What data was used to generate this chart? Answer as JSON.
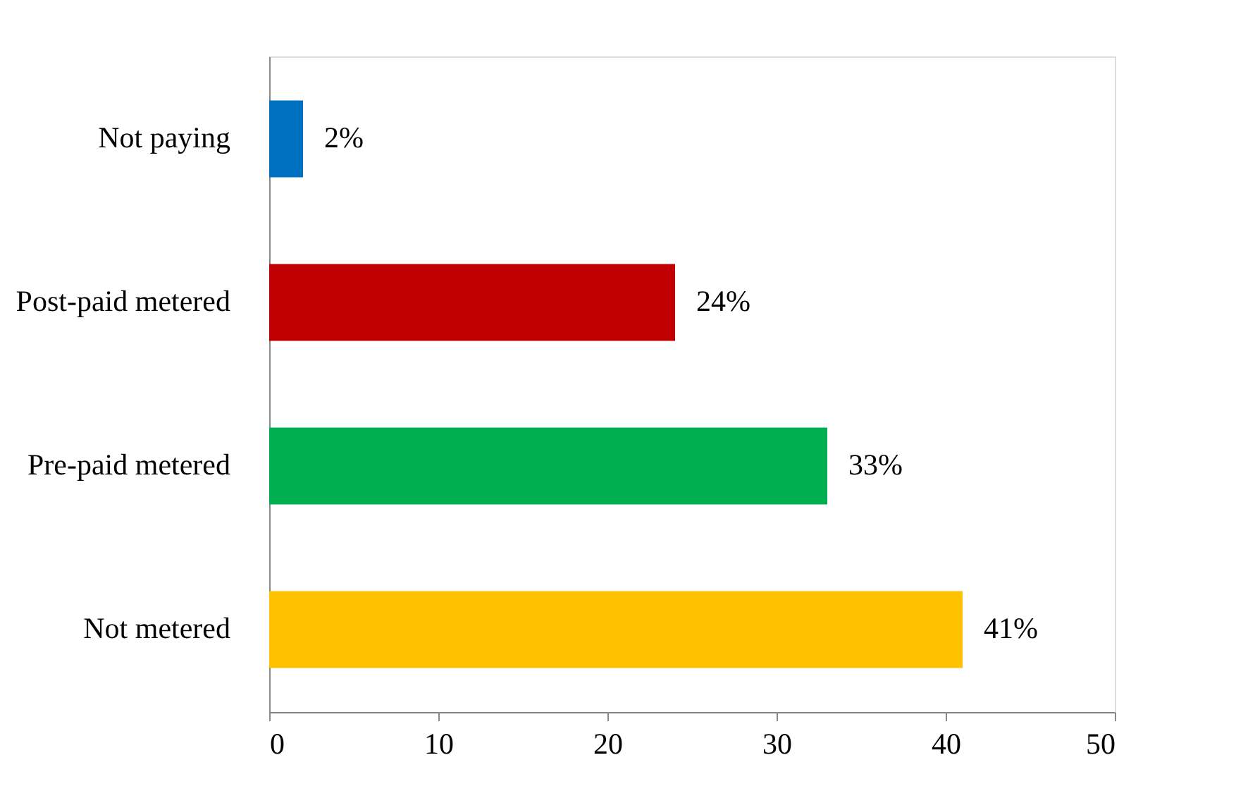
{
  "chart_data": {
    "type": "bar",
    "orientation": "horizontal",
    "categories": [
      "Not paying",
      "Post-paid metered",
      "Pre-paid metered",
      "Not metered"
    ],
    "values": [
      2,
      24,
      33,
      41
    ],
    "colors": [
      "#0070c0",
      "#c00000",
      "#00b050",
      "#ffc000"
    ],
    "value_labels": [
      "2%",
      "24%",
      "33%",
      "41%"
    ],
    "xlim": [
      0,
      50
    ],
    "xticks": [
      0,
      10,
      20,
      30,
      40,
      50
    ],
    "grid": false
  }
}
